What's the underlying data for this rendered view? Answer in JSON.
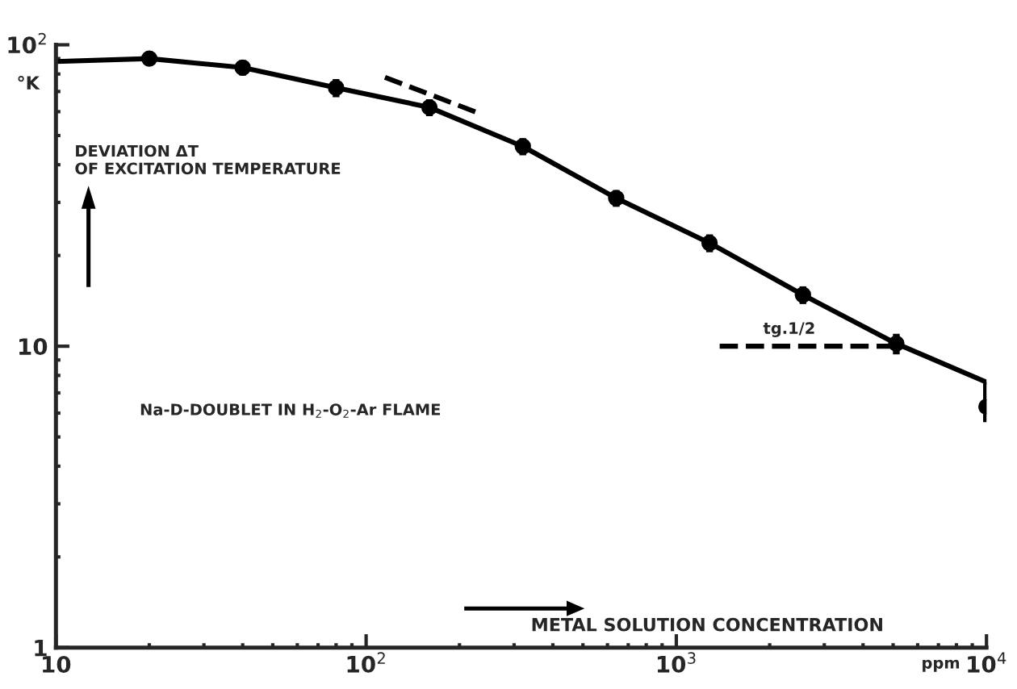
{
  "chart_data": {
    "type": "line",
    "xlabel": "METAL SOLUTION CONCENTRATION",
    "ylabel": "°K",
    "log": "xy",
    "xlim": [
      10,
      10000
    ],
    "ylim": [
      1,
      100
    ],
    "xticks": [
      10,
      {
        "value": 100,
        "label": "10$^{2}$"
      },
      {
        "value": 1000,
        "label": "10$^{3}$"
      },
      {
        "value": 10000,
        "label": "10$^{4}$"
      }
    ],
    "yticks": [
      1,
      10,
      {
        "value": 100,
        "label": "10$^{2}$"
      }
    ],
    "grid": false,
    "series": [
      {
        "color": "#000000",
        "line_style": "solid",
        "x": [
          10,
          20,
          40,
          80,
          160,
          320,
          640,
          1280,
          2560,
          5120,
          10000
        ],
        "values": [
          88,
          90,
          84,
          72,
          62,
          46,
          31,
          22,
          14.8,
          10.2,
          7.6
        ]
      },
      {
        "color": "#000000",
        "line_style": "dashed",
        "x": [
          115,
          234
        ],
        "values": [
          78,
          59
        ]
      },
      {
        "color": "#000000",
        "line_style": "dashed",
        "x": [
          1380,
          5120
        ],
        "values": [
          10,
          10
        ]
      },
      {
        "type": "scatter",
        "marker": "circle",
        "color": "#000000",
        "x": [
          20,
          40,
          80,
          160,
          320,
          640,
          1280,
          2560,
          5120,
          10000
        ],
        "values": [
          90,
          84,
          72,
          62,
          46,
          31,
          22,
          14.8,
          10.2,
          6.3
        ],
        "errors": [
          [
            85,
            95
          ],
          [
            79,
            89
          ],
          [
            67,
            77
          ],
          [
            58,
            66
          ],
          [
            43,
            49
          ],
          [
            29,
            33
          ],
          [
            20.5,
            23.5
          ],
          [
            13.8,
            15.8
          ],
          [
            9.4,
            11
          ],
          [
            5.6,
            7.6
          ]
        ]
      }
    ],
    "annotations": [
      "DEVIATION ΔT\nOF EXCITATION TEMPERATURE",
      "Na-D-DOUBLET IN H$_{2}$-O$_{2}$-Ar FLAME",
      "tg.1/2",
      "ppm"
    ]
  }
}
